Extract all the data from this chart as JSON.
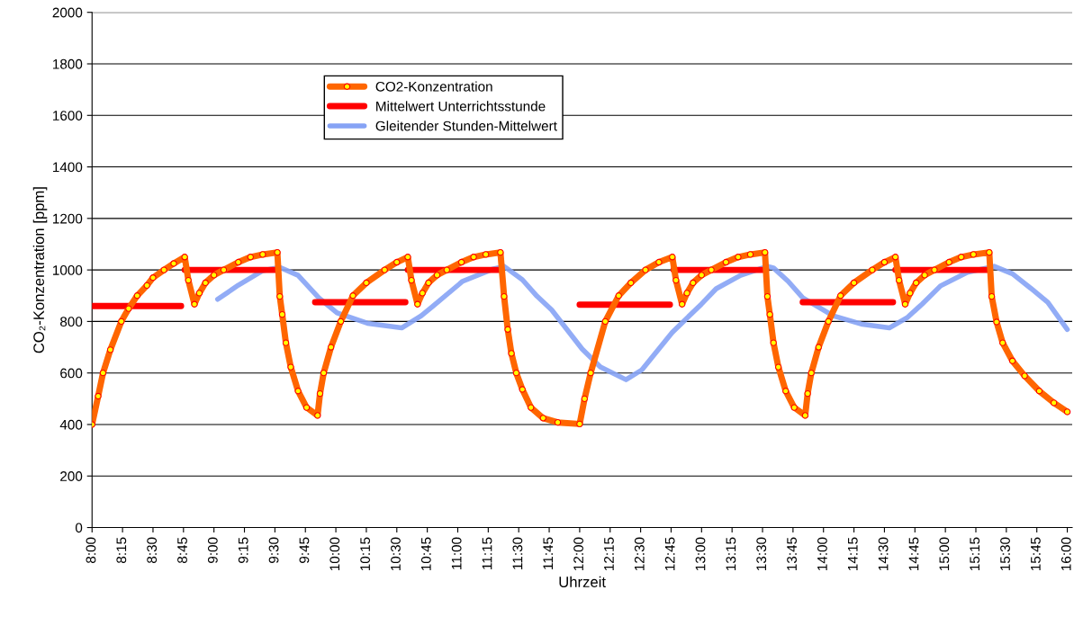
{
  "chart_data": {
    "type": "line",
    "xlabel": "Uhrzeit",
    "ylabel": "CO₂-Konzentration [ppm]",
    "xlim": [
      8,
      16.04
    ],
    "ylim": [
      0,
      2000
    ],
    "yticks": [
      0,
      200,
      400,
      600,
      800,
      1000,
      1200,
      1400,
      1600,
      1800,
      2000
    ],
    "xticks": [
      {
        "value": 8,
        "label": "8:00"
      },
      {
        "value": 8.25,
        "label": "8:15"
      },
      {
        "value": 8.5,
        "label": "8:30"
      },
      {
        "value": 8.75,
        "label": "8:45"
      },
      {
        "value": 9,
        "label": "9:00"
      },
      {
        "value": 9.25,
        "label": "9:15"
      },
      {
        "value": 9.5,
        "label": "9:30"
      },
      {
        "value": 9.75,
        "label": "9:45"
      },
      {
        "value": 10,
        "label": "10:00"
      },
      {
        "value": 10.25,
        "label": "10:15"
      },
      {
        "value": 10.5,
        "label": "10:30"
      },
      {
        "value": 10.75,
        "label": "10:45"
      },
      {
        "value": 11,
        "label": "11:00"
      },
      {
        "value": 11.25,
        "label": "11:15"
      },
      {
        "value": 11.5,
        "label": "11:30"
      },
      {
        "value": 11.75,
        "label": "11:45"
      },
      {
        "value": 12,
        "label": "12:00"
      },
      {
        "value": 12.25,
        "label": "12:15"
      },
      {
        "value": 12.5,
        "label": "12:30"
      },
      {
        "value": 12.75,
        "label": "12:45"
      },
      {
        "value": 13,
        "label": "13:00"
      },
      {
        "value": 13.25,
        "label": "13:15"
      },
      {
        "value": 13.5,
        "label": "13:30"
      },
      {
        "value": 13.75,
        "label": "13:45"
      },
      {
        "value": 14,
        "label": "14:00"
      },
      {
        "value": 14.25,
        "label": "14:15"
      },
      {
        "value": 14.5,
        "label": "14:30"
      },
      {
        "value": 14.75,
        "label": "14:45"
      },
      {
        "value": 15,
        "label": "15:00"
      },
      {
        "value": 15.25,
        "label": "15:15"
      },
      {
        "value": 15.5,
        "label": "15:30"
      },
      {
        "value": 15.75,
        "label": "15:45"
      },
      {
        "value": 16,
        "label": "16:00"
      }
    ],
    "grid": "y",
    "legend": "top left",
    "series": [
      {
        "name": "CO2-Konzentration",
        "color": "#ff6600",
        "marker": "circle",
        "x": [
          8.0,
          8.05,
          8.09,
          8.15,
          8.24,
          8.3,
          8.37,
          8.45,
          8.5,
          8.59,
          8.67,
          8.76,
          8.79,
          8.84,
          8.88,
          8.93,
          9.0,
          9.08,
          9.2,
          9.3,
          9.4,
          9.52,
          9.54,
          9.56,
          9.59,
          9.63,
          9.69,
          9.76,
          9.85,
          9.87,
          9.9,
          9.96,
          10.04,
          10.14,
          10.25,
          10.4,
          10.5,
          10.59,
          10.62,
          10.67,
          10.71,
          10.76,
          10.83,
          10.91,
          11.03,
          11.13,
          11.23,
          11.35,
          11.38,
          11.41,
          11.44,
          11.48,
          11.53,
          11.6,
          11.7,
          11.82,
          12.0,
          12.04,
          12.09,
          12.21,
          12.32,
          12.42,
          12.54,
          12.65,
          12.76,
          12.79,
          12.84,
          12.88,
          12.93,
          13.0,
          13.08,
          13.2,
          13.3,
          13.4,
          13.52,
          13.54,
          13.56,
          13.59,
          13.63,
          13.69,
          13.76,
          13.85,
          13.87,
          13.9,
          13.96,
          14.04,
          14.14,
          14.25,
          14.4,
          14.5,
          14.59,
          14.62,
          14.67,
          14.71,
          14.76,
          14.83,
          14.91,
          15.03,
          15.13,
          15.23,
          15.36,
          15.38,
          15.42,
          15.47,
          15.55,
          15.65,
          15.77,
          15.89,
          16.0
        ],
        "values": [
          400,
          510,
          600,
          690,
          800,
          850,
          900,
          940,
          970,
          1000,
          1025,
          1050,
          960,
          867,
          910,
          950,
          980,
          1000,
          1030,
          1050,
          1060,
          1068,
          897,
          827,
          717,
          623,
          530,
          466,
          435,
          520,
          600,
          700,
          800,
          900,
          950,
          1000,
          1030,
          1050,
          960,
          867,
          910,
          950,
          980,
          1000,
          1030,
          1050,
          1060,
          1068,
          897,
          769,
          676,
          600,
          536,
          466,
          425,
          408,
          402,
          500,
          600,
          800,
          900,
          950,
          1000,
          1030,
          1050,
          960,
          867,
          910,
          950,
          980,
          1000,
          1030,
          1050,
          1060,
          1068,
          897,
          827,
          717,
          623,
          530,
          466,
          435,
          520,
          600,
          700,
          800,
          900,
          950,
          1000,
          1030,
          1050,
          960,
          867,
          910,
          950,
          980,
          1000,
          1030,
          1050,
          1060,
          1068,
          897,
          798,
          717,
          647,
          589,
          530,
          484,
          449
        ]
      },
      {
        "name": "Mittelwert Unterrichtsstunde",
        "color": "#ff0000",
        "marker": "none",
        "x": [
          8.0,
          8.73,
          8.74,
          8.76,
          9.52,
          9.53,
          9.83,
          10.57,
          10.58,
          10.59,
          11.35,
          11.36,
          12.0,
          12.74,
          12.75,
          12.77,
          13.53,
          13.54,
          13.83,
          14.57,
          14.58,
          14.59,
          15.36
        ],
        "values": [
          860,
          860,
          null,
          1000,
          1000,
          null,
          875,
          875,
          null,
          1000,
          1000,
          null,
          865,
          865,
          null,
          1000,
          1000,
          null,
          875,
          875,
          null,
          1000,
          1000
        ]
      },
      {
        "name": "Gleitender Stunden-Mittelwert",
        "color": "#86a3f5",
        "marker": "none",
        "x": [
          9.03,
          9.2,
          9.4,
          9.54,
          9.69,
          9.86,
          10.01,
          10.26,
          10.54,
          10.7,
          10.79,
          11.04,
          11.28,
          11.38,
          11.53,
          11.65,
          11.77,
          12.02,
          12.17,
          12.38,
          12.51,
          12.76,
          13.0,
          13.12,
          13.32,
          13.54,
          13.59,
          13.71,
          13.83,
          14.08,
          14.32,
          14.54,
          14.69,
          14.81,
          14.96,
          15.18,
          15.4,
          15.55,
          15.7,
          15.84,
          16.0
        ],
        "values": [
          886,
          941,
          997,
          1010,
          979,
          892,
          833,
          793,
          775,
          822,
          857,
          956,
          1002,
          1014,
          962,
          898,
          845,
          693,
          623,
          574,
          612,
          758,
          868,
          927,
          979,
          1014,
          1008,
          956,
          892,
          822,
          789,
          775,
          816,
          868,
          938,
          991,
          1014,
          985,
          929,
          874,
          769
        ]
      }
    ]
  }
}
